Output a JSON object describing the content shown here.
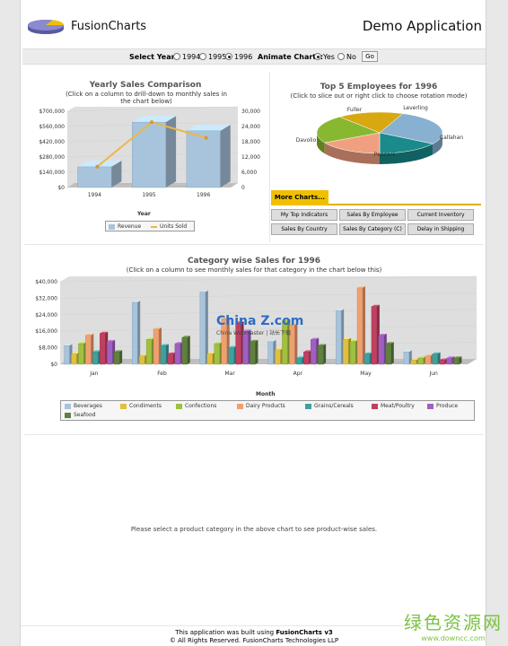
{
  "header": {
    "logo_text": "FusionCharts",
    "app_title": "Demo Application"
  },
  "selector": {
    "select_year_label": "Select Year:",
    "years": [
      "1994",
      "1995",
      "1996"
    ],
    "selected_year": "1996",
    "animate_label": "Animate Charts:",
    "animate_options": [
      "Yes",
      "No"
    ],
    "animate_selected": "Yes",
    "go_label": "Go"
  },
  "yearly_chart": {
    "title": "Yearly Sales Comparison",
    "subtitle": "(Click on a column to drill-down to monthly sales in the chart below)",
    "xlabel": "Year",
    "left_ticks": [
      "$700,000",
      "$560,000",
      "$420,000",
      "$280,000",
      "$140,000",
      "$0"
    ],
    "right_ticks": [
      "30,000",
      "24,000",
      "18,000",
      "12,000",
      "6,000",
      "0"
    ],
    "legend": [
      "Revenue",
      "Units Sold"
    ]
  },
  "employees_chart": {
    "title": "Top 5 Employees for 1996",
    "subtitle": "(Click to slice out or right click to choose rotation mode)",
    "labels": [
      "Fuller",
      "Leverling",
      "Callahan",
      "Peacock",
      "Davolio"
    ]
  },
  "more_charts": {
    "tab_label": "More Charts...",
    "buttons": [
      "My Top Indicators",
      "Sales By Employee",
      "Current Inventory",
      "Sales By Country",
      "Sales By Category (C)",
      "Delay in Shipping"
    ]
  },
  "category_chart": {
    "title": "Category wise Sales for 1996",
    "subtitle": "(Click on a column to see monthly sales for that category in the chart below this)",
    "xlabel": "Month",
    "y_ticks": [
      "$40,000",
      "$32,000",
      "$24,000",
      "$16,000",
      "$8,000",
      "$0"
    ]
  },
  "watermark_overlay": {
    "text": "China Z.com",
    "sub": "China Webmaster | 站长下载"
  },
  "product_message": "Please select a product category in the above chart to see product-wise sales.",
  "footer": {
    "line1_prefix": "This application was built using ",
    "line1_bold": "FusionCharts v3",
    "line2": "© All Rights Reserved. FusionCharts Technologies LLP"
  },
  "site_watermark": {
    "line1": "绿色资源网",
    "line2": "www.downcc.com"
  },
  "colors": {
    "accent": "#f0c000",
    "revenue": "#a8c4dc",
    "units_line": "#e8b84a",
    "watermark_green": "#7cc244"
  },
  "chart_data": [
    {
      "type": "bar",
      "title": "Yearly Sales Comparison",
      "xlabel": "Year",
      "categories": [
        "1994",
        "1995",
        "1996"
      ],
      "series": [
        {
          "name": "Revenue",
          "values": [
            190000,
            600000,
            520000
          ]
        },
        {
          "name": "Units Sold",
          "values": [
            8200,
            25700,
            19500
          ]
        }
      ],
      "ylim": [
        0,
        700000
      ],
      "y2lim": [
        0,
        30000
      ],
      "legend": "bottom"
    },
    {
      "type": "pie",
      "title": "Top 5 Employees for 1996",
      "categories": [
        "Fuller",
        "Leverling",
        "Callahan",
        "Peacock",
        "Davolio"
      ],
      "values": [
        17,
        28,
        16,
        17,
        22
      ]
    },
    {
      "type": "bar",
      "title": "Category wise Sales for 1996",
      "xlabel": "Month",
      "categories": [
        "Jan",
        "Feb",
        "Mar",
        "Apr",
        "May",
        "Jun"
      ],
      "ylim": [
        0,
        40000
      ],
      "legend": "bottom",
      "series": [
        {
          "name": "Beverages",
          "color": "#a8c4dc",
          "values": [
            9000,
            30000,
            35000,
            11000,
            26000,
            6000
          ]
        },
        {
          "name": "Condiments",
          "color": "#e0c040",
          "values": [
            5000,
            4000,
            5000,
            7000,
            12000,
            2000
          ]
        },
        {
          "name": "Confections",
          "color": "#a0c040",
          "values": [
            10000,
            12000,
            10000,
            21000,
            11000,
            3000
          ]
        },
        {
          "name": "Dairy Products",
          "color": "#f0a070",
          "values": [
            14000,
            17000,
            22000,
            19000,
            37000,
            4000
          ]
        },
        {
          "name": "Grains/Cereals",
          "color": "#40a0a0",
          "values": [
            6000,
            9000,
            8000,
            3000,
            5000,
            5000
          ]
        },
        {
          "name": "Meat/Poultry",
          "color": "#c04060",
          "values": [
            15000,
            5000,
            20000,
            6000,
            28000,
            2000
          ]
        },
        {
          "name": "Produce",
          "color": "#a060c0",
          "values": [
            11000,
            10000,
            16000,
            12000,
            14000,
            3000
          ]
        },
        {
          "name": "Seafood",
          "color": "#608040",
          "values": [
            6000,
            13000,
            11000,
            9000,
            10000,
            3000
          ]
        }
      ]
    }
  ]
}
